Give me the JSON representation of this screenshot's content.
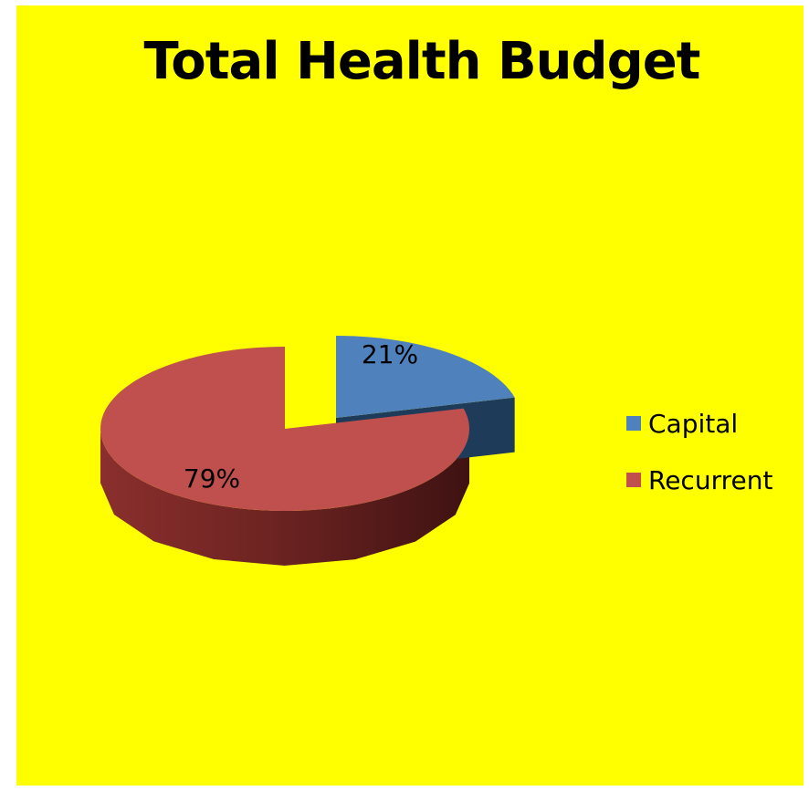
{
  "colors": {
    "background": "#ffff00",
    "page": "#ffffff",
    "capital": "#4f81bd",
    "capital_dark": "#1f3b5a",
    "recurrent": "#c0504d",
    "recurrent_dark": "#4a1616"
  },
  "chart_data": {
    "type": "pie",
    "title": "Total Health Budget",
    "style": "3d-exploded",
    "legend_position": "right",
    "categories": [
      "Capital",
      "Recurrent"
    ],
    "values": [
      21,
      79
    ],
    "data_labels": [
      "21%",
      "79%"
    ],
    "series": [
      {
        "values": [
          21,
          79
        ]
      }
    ]
  }
}
